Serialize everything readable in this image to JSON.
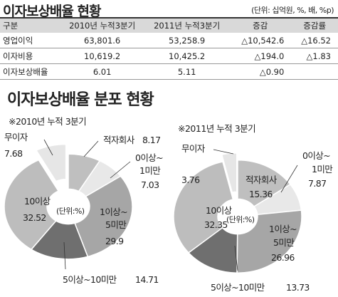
{
  "top_title": "이자보상배율 현황",
  "unit_note": "(단위: 십억원, %, 배, %p)",
  "table": {
    "headers": [
      "구분",
      "2010년 누적3분기",
      "2011년 누적3분기",
      "증감",
      "증감률"
    ],
    "rows": [
      [
        "영업이익",
        "63,801.6",
        "53,258.9",
        "△10,542.6",
        "△16.52"
      ],
      [
        "이자비용",
        "10,619.2",
        "10,425.2",
        "△194.0",
        "△1.83"
      ],
      [
        "이자보상배율",
        "6.01",
        "5.11",
        "△0.90",
        ""
      ]
    ]
  },
  "section_title": "이자보상배율 분포 현황",
  "chart_data": [
    {
      "type": "pie",
      "subtitle": "※2010년 누적 3분기",
      "center_label": "(단위:%)",
      "categories": [
        "무이자",
        "적자회사",
        "0이상~1미만",
        "1이상~5미만",
        "5이상~10미만",
        "10이상"
      ],
      "values": [
        7.68,
        8.17,
        7.03,
        29.9,
        14.71,
        32.52
      ],
      "colors": [
        "#e6e6e6",
        "#bfbfbf",
        "#e8e8e8",
        "#a6a6a6",
        "#6f6f6f",
        "#bdbdbd"
      ],
      "exploded": [
        "무이자"
      ],
      "labels": {
        "no_interest": [
          "무이자",
          "7.68"
        ],
        "deficit": [
          "적자회사",
          "8.17"
        ],
        "zero_one": [
          "0이상~",
          "1미만",
          "7.03"
        ],
        "one_five": [
          "1이상~",
          "5미만",
          "29.9"
        ],
        "five_ten": [
          "5이상~10미만",
          "14.71"
        ],
        "ten_plus": [
          "10이상",
          "32.52"
        ]
      }
    },
    {
      "type": "pie",
      "subtitle": "※2011년 누적 3분기",
      "center_label": "(단위:%)",
      "categories": [
        "무이자",
        "적자회사",
        "0이상~1미만",
        "1이상~5미만",
        "5이상~10미만",
        "10이상"
      ],
      "values": [
        3.76,
        15.36,
        7.87,
        26.96,
        13.73,
        32.35
      ],
      "colors": [
        "#e6e6e6",
        "#bfbfbf",
        "#e8e8e8",
        "#a6a6a6",
        "#6f6f6f",
        "#bdbdbd"
      ],
      "exploded": [
        "무이자"
      ],
      "labels": {
        "no_interest": [
          "무이자",
          "3.76"
        ],
        "deficit": [
          "적자회사",
          "15.36"
        ],
        "zero_one": [
          "0이상~",
          "1미만",
          "7.87"
        ],
        "one_five": [
          "1이상~",
          "5미만",
          "26.96"
        ],
        "five_ten": [
          "5이상~10미만",
          "13.73"
        ],
        "ten_plus": [
          "10이상",
          "32.35"
        ]
      }
    }
  ]
}
